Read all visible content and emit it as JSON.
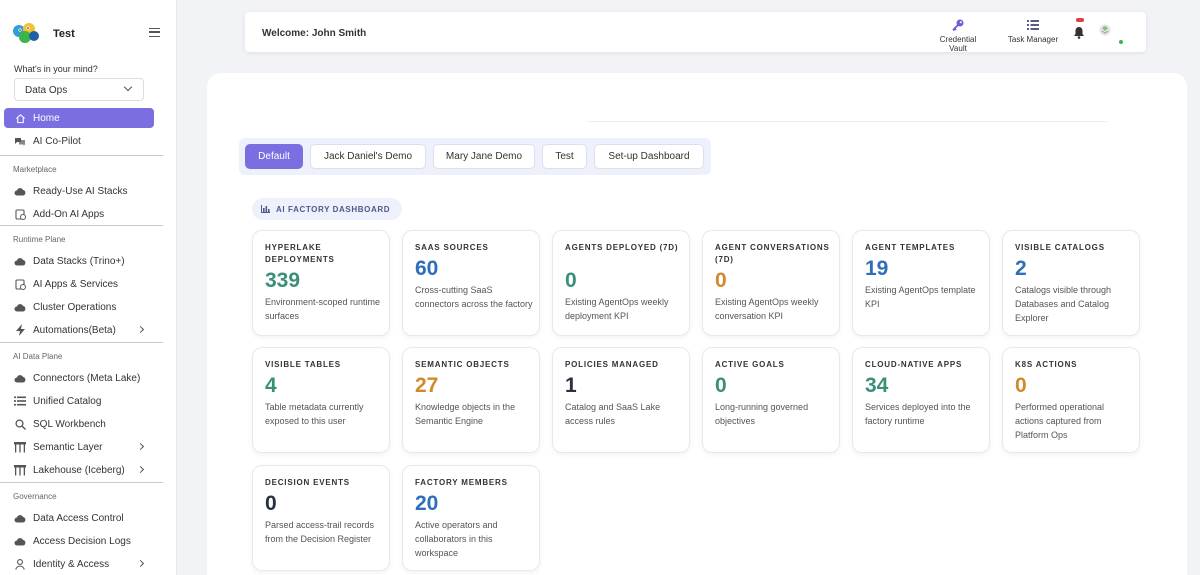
{
  "brand": {
    "name": "Test"
  },
  "sidebar": {
    "mind_label": "What's in your mind?",
    "mind_value": "Data Ops",
    "top_items": [
      {
        "label": "Home",
        "icon": "home-icon"
      },
      {
        "label": "AI Co-Pilot",
        "icon": "chat-icon"
      }
    ],
    "sections": [
      {
        "title": "Marketplace",
        "items": [
          {
            "label": "Ready-Use AI Stacks",
            "icon": "cloud-icon"
          },
          {
            "label": "Add-On AI Apps",
            "icon": "app-icon"
          }
        ]
      },
      {
        "title": "Runtime Plane",
        "items": [
          {
            "label": "Data Stacks (Trino+)",
            "icon": "cloud-icon"
          },
          {
            "label": "AI Apps & Services",
            "icon": "app-icon"
          },
          {
            "label": "Cluster Operations",
            "icon": "cloud-icon"
          },
          {
            "label": "Automations(Beta)",
            "icon": "bolt-icon"
          }
        ]
      },
      {
        "title": "AI Data Plane",
        "items": [
          {
            "label": "Connectors (Meta Lake)",
            "icon": "cloud-icon"
          },
          {
            "label": "Unified Catalog",
            "icon": "list-icon"
          },
          {
            "label": "SQL Workbench",
            "icon": "search-icon"
          },
          {
            "label": "Semantic Layer",
            "icon": "tree-icon"
          },
          {
            "label": "Lakehouse (Iceberg)",
            "icon": "tree-icon"
          }
        ]
      },
      {
        "title": "Governance",
        "items": [
          {
            "label": "Data Access Control",
            "icon": "cloud-icon"
          },
          {
            "label": "Access Decision Logs",
            "icon": "cloud-icon"
          },
          {
            "label": "Identity & Access",
            "icon": "user-icon"
          }
        ]
      }
    ]
  },
  "header": {
    "welcome": "Welcome: John Smith",
    "credential_vault": "Credential Vault",
    "task_manager": "Task Manager"
  },
  "tabs": [
    "Default",
    "Jack Daniel's Demo",
    "Mary Jane Demo",
    "Test",
    "Set-up Dashboard"
  ],
  "dashboard_label": "AI FACTORY DASHBOARD",
  "colors": {
    "accent": "#7b6ee0",
    "green": "#3a8f7a",
    "blue": "#2f6fba",
    "orange": "#d08a2c",
    "dark": "#2b3040"
  },
  "cards": [
    {
      "title": "HYPERLAKE DEPLOYMENTS",
      "value": "339",
      "desc": "Environment-scoped runtime surfaces",
      "color": "green"
    },
    {
      "title": "SAAS SOURCES",
      "value": "60",
      "desc": "Cross-cutting SaaS connectors across the factory",
      "color": "blue"
    },
    {
      "title": "AGENTS DEPLOYED (7D)",
      "value": "0",
      "desc": "Existing AgentOps weekly deployment KPI",
      "color": "green"
    },
    {
      "title": "AGENT CONVERSATIONS (7D)",
      "value": "0",
      "desc": "Existing AgentOps weekly conversation KPI",
      "color": "orange"
    },
    {
      "title": "AGENT TEMPLATES",
      "value": "19",
      "desc": "Existing AgentOps template KPI",
      "color": "blue"
    },
    {
      "title": "VISIBLE CATALOGS",
      "value": "2",
      "desc": "Catalogs visible through Databases and Catalog Explorer",
      "color": "blue"
    },
    {
      "title": "VISIBLE TABLES",
      "value": "4",
      "desc": "Table metadata currently exposed to this user",
      "color": "green"
    },
    {
      "title": "SEMANTIC OBJECTS",
      "value": "27",
      "desc": "Knowledge objects in the Semantic Engine",
      "color": "orange"
    },
    {
      "title": "POLICIES MANAGED",
      "value": "1",
      "desc": "Catalog and SaaS Lake access rules",
      "color": "dark"
    },
    {
      "title": "ACTIVE GOALS",
      "value": "0",
      "desc": "Long-running governed objectives",
      "color": "green"
    },
    {
      "title": "CLOUD-NATIVE APPS",
      "value": "34",
      "desc": "Services deployed into the factory runtime",
      "color": "green"
    },
    {
      "title": "K8S ACTIONS",
      "value": "0",
      "desc": "Performed operational actions captured from Platform Ops",
      "color": "orange"
    },
    {
      "title": "DECISION EVENTS",
      "value": "0",
      "desc": "Parsed access-trail records from the Decision Register",
      "color": "dark"
    },
    {
      "title": "FACTORY MEMBERS",
      "value": "20",
      "desc": "Active operators and collaborators in this workspace",
      "color": "blue"
    }
  ]
}
